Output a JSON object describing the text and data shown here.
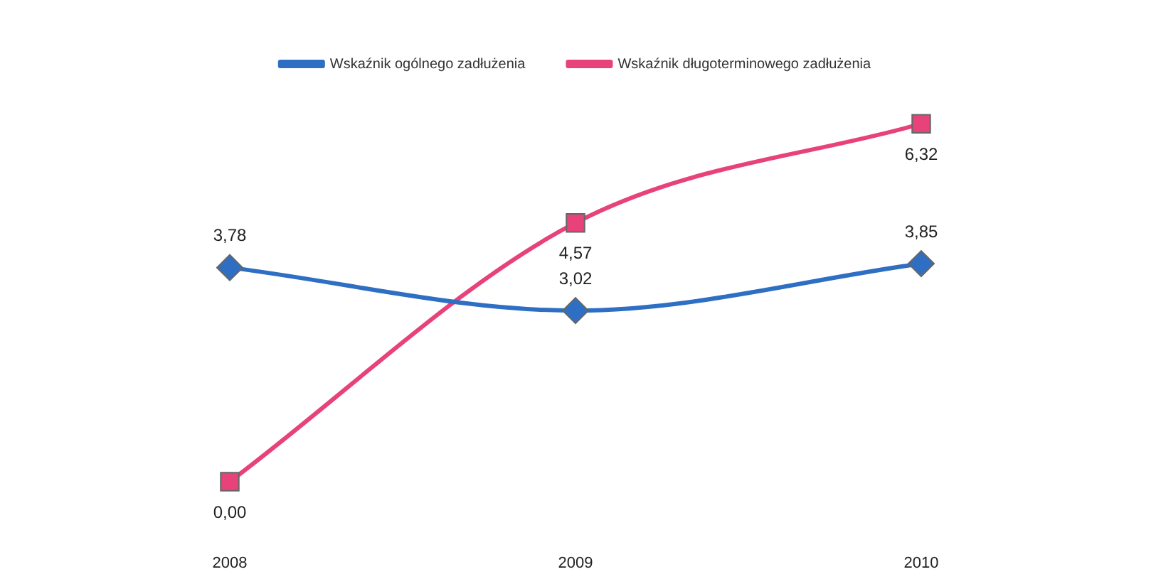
{
  "chart_data": {
    "type": "line",
    "categories": [
      "2008",
      "2009",
      "2010"
    ],
    "legend": "top",
    "grid": false,
    "series": [
      {
        "name": "Wskaźnik ogólnego zadłużenia",
        "color": "#2e6fc4",
        "marker": "diamond",
        "values": [
          3.78,
          3.02,
          3.85
        ],
        "value_labels": [
          "3,78",
          "3,02",
          "3,85"
        ]
      },
      {
        "name": "Wskaźnik długoterminowego zadłużenia",
        "color": "#e8427a",
        "marker": "square",
        "values": [
          0,
          4.57,
          6.32
        ],
        "value_labels": [
          "0,00",
          "4,57",
          "6,32"
        ]
      }
    ]
  }
}
